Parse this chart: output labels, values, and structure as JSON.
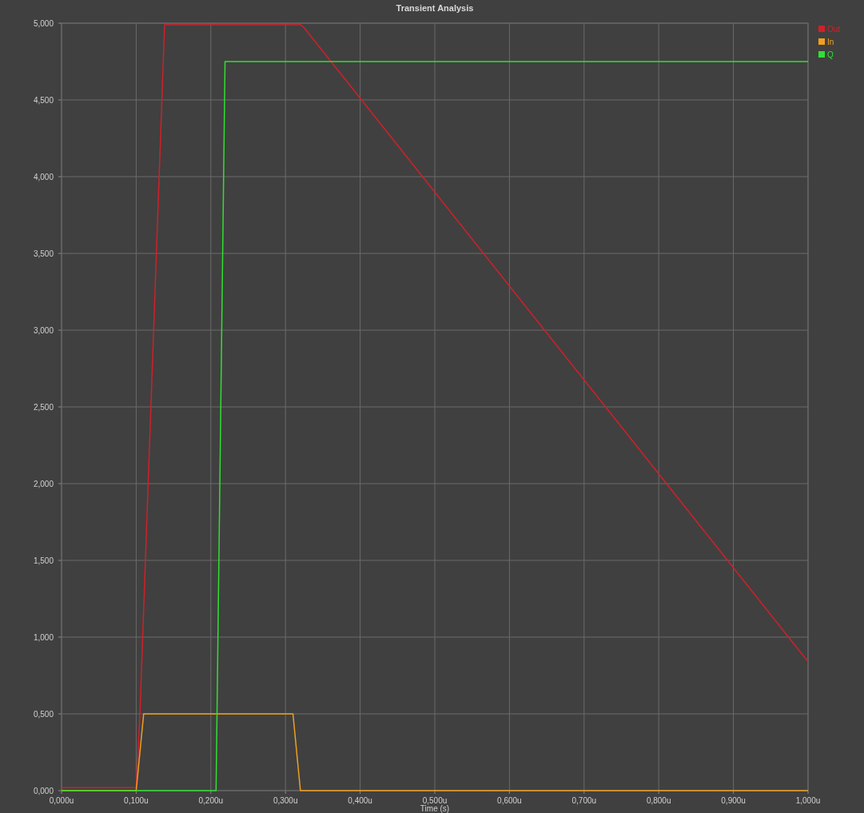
{
  "chart_data": {
    "type": "line",
    "title": "Transient Analysis",
    "xlabel": "Time (s)",
    "xlim": [
      0,
      1
    ],
    "ylim": [
      0,
      5
    ],
    "xticks": [
      {
        "value": 0,
        "label": "0,000u"
      },
      {
        "value": 0.1,
        "label": "0,100u"
      },
      {
        "value": 0.2,
        "label": "0,200u"
      },
      {
        "value": 0.3,
        "label": "0,300u"
      },
      {
        "value": 0.4,
        "label": "0,400u"
      },
      {
        "value": 0.5,
        "label": "0,500u"
      },
      {
        "value": 0.6,
        "label": "0,600u"
      },
      {
        "value": 0.7,
        "label": "0,700u"
      },
      {
        "value": 0.8,
        "label": "0,800u"
      },
      {
        "value": 0.9,
        "label": "0,900u"
      },
      {
        "value": 1,
        "label": "1,000u"
      }
    ],
    "yticks": [
      {
        "value": 0,
        "label": "0,000"
      },
      {
        "value": 0.5,
        "label": "0,500"
      },
      {
        "value": 1,
        "label": "1,000"
      },
      {
        "value": 1.5,
        "label": "1,500"
      },
      {
        "value": 2,
        "label": "2,000"
      },
      {
        "value": 2.5,
        "label": "2,500"
      },
      {
        "value": 3,
        "label": "3,000"
      },
      {
        "value": 3.5,
        "label": "3,500"
      },
      {
        "value": 4,
        "label": "4,000"
      },
      {
        "value": 4.5,
        "label": "4,500"
      },
      {
        "value": 5,
        "label": "5,000"
      }
    ],
    "grid": true,
    "legend": "top right",
    "marker": "none",
    "line_style": "solid",
    "series": [
      {
        "name": "Out",
        "color": "#d0202a",
        "x": [
          0,
          0.1,
          0.105,
          0.138,
          0.32,
          0.325,
          1
        ],
        "values": [
          0.02,
          0.02,
          0.5,
          4.99,
          4.99,
          4.97,
          0.84
        ]
      },
      {
        "name": "In",
        "color": "#f0a020",
        "x": [
          0,
          0.1,
          0.11,
          0.31,
          0.32,
          1
        ],
        "values": [
          0,
          0,
          0.5,
          0.5,
          0,
          0
        ]
      },
      {
        "name": "Q",
        "color": "#30e030",
        "x": [
          0,
          0.207,
          0.219,
          1
        ],
        "values": [
          0,
          0,
          4.75,
          4.75
        ]
      }
    ]
  }
}
